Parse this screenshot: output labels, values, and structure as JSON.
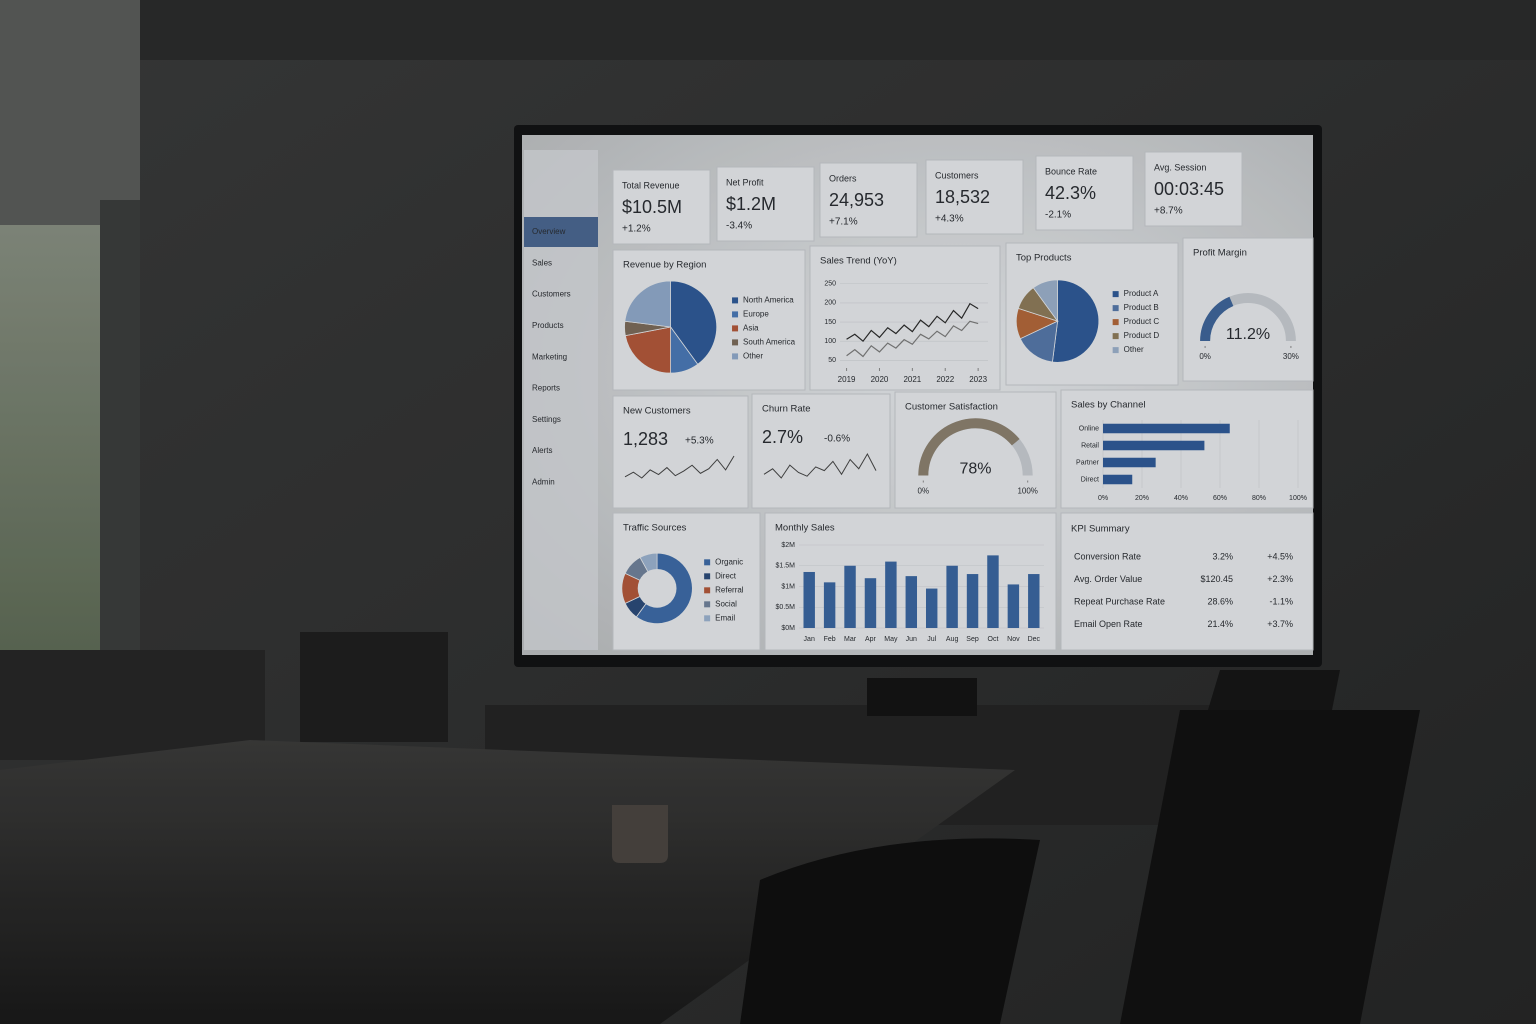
{
  "nav": [
    "Overview",
    "Sales",
    "Customers",
    "Products",
    "Marketing",
    "Reports",
    "Settings",
    "Alerts",
    "Admin"
  ],
  "kpis": [
    {
      "label": "Total Revenue",
      "value": "$10.5M",
      "change": "+1.2%"
    },
    {
      "label": "Net Profit",
      "value": "$1.2M",
      "change": "-3.4%"
    },
    {
      "label": "Orders",
      "value": "24,953",
      "change": "+7.1%"
    },
    {
      "label": "Customers",
      "value": "18,532",
      "change": "+4.3%"
    },
    {
      "label": "Bounce Rate",
      "value": "42.3%",
      "change": "-2.1%"
    },
    {
      "label": "Avg. Session",
      "value": "00:03:45",
      "change": "+8.7%"
    }
  ],
  "chart_data": [
    {
      "type": "pie",
      "title": "Revenue by Region",
      "categories": [
        "North America",
        "Europe",
        "Asia",
        "South America",
        "Other"
      ],
      "values": [
        40,
        10,
        22,
        5,
        23
      ],
      "colors": [
        "#2f5a96",
        "#4a78b5",
        "#b0573a",
        "#7a6a5a",
        "#8fa8c8"
      ]
    },
    {
      "type": "line",
      "title": "Sales Trend (YoY)",
      "x": [
        2019,
        2019.25,
        2019.5,
        2019.75,
        2020,
        2020.25,
        2020.5,
        2020.75,
        2021,
        2021.25,
        2021.5,
        2021.75,
        2022,
        2022.25,
        2022.5,
        2022.75,
        2023
      ],
      "series": [
        {
          "color": "#2b2b2b",
          "values": [
            105,
            118,
            100,
            128,
            110,
            135,
            120,
            142,
            125,
            155,
            138,
            165,
            148,
            180,
            160,
            198,
            185
          ]
        },
        {
          "color": "#7a7a7a",
          "values": [
            62,
            78,
            60,
            88,
            72,
            95,
            82,
            104,
            92,
            118,
            106,
            126,
            112,
            140,
            128,
            152,
            146
          ]
        }
      ],
      "xlim": [
        2018.8,
        2023.3
      ],
      "xticks": [
        2019,
        2020,
        2021,
        2022,
        2023
      ],
      "ylim": [
        30,
        265
      ],
      "yticks": [
        50,
        100,
        150,
        200,
        250
      ],
      "grid": true
    },
    {
      "type": "pie",
      "title": "Top Products",
      "categories": [
        "Product A",
        "Product B",
        "Product C",
        "Product D",
        "Other"
      ],
      "values": [
        52,
        16,
        12,
        10,
        10
      ],
      "colors": [
        "#2f5a96",
        "#5577a8",
        "#b0673a",
        "#8c7a5a",
        "#9aaec8"
      ]
    },
    {
      "type": "gauge",
      "title": "Profit Margin",
      "values": [
        11.2
      ],
      "value_labels": [
        "11.2%"
      ],
      "ylim": [
        0,
        30
      ],
      "yticks": [
        {
          "value": 0,
          "label": "0%"
        },
        {
          "value": 30,
          "label": "30%"
        }
      ],
      "color": "#3e6498"
    },
    {
      "type": "sparkline",
      "title": "New Customers",
      "headline": "1,283",
      "change": "+5.3%",
      "values": [
        20,
        24,
        19,
        26,
        22,
        28,
        21,
        25,
        30,
        23,
        27,
        35,
        26,
        38
      ],
      "color": "#444444"
    },
    {
      "type": "sparkline",
      "title": "Churn Rate",
      "headline": "2.7%",
      "change": "-0.6%",
      "values": [
        22,
        25,
        20,
        27,
        23,
        21,
        26,
        24,
        29,
        22,
        30,
        25,
        33,
        24
      ],
      "color": "#444444"
    },
    {
      "type": "gauge",
      "title": "Customer Satisfaction",
      "values": [
        78
      ],
      "value_labels": [
        "78%"
      ],
      "ylim": [
        0,
        100
      ],
      "yticks": [
        {
          "value": 0,
          "label": "0%"
        },
        {
          "value": 100,
          "label": "100%"
        }
      ],
      "color": "#8a7f6e"
    },
    {
      "type": "hbar",
      "title": "Sales by Channel",
      "categories": [
        "Online",
        "Retail",
        "Partner",
        "Direct"
      ],
      "values": [
        65,
        52,
        27,
        15
      ],
      "color": "#2f5a96",
      "xlim": [
        0,
        100
      ],
      "xticks": [
        {
          "value": 0,
          "label": "0%"
        },
        {
          "value": 20,
          "label": "20%"
        },
        {
          "value": 40,
          "label": "40%"
        },
        {
          "value": 60,
          "label": "60%"
        },
        {
          "value": 80,
          "label": "80%"
        },
        {
          "value": 100,
          "label": "100%"
        }
      ]
    },
    {
      "type": "donut",
      "title": "Traffic Sources",
      "categories": [
        "Organic",
        "Direct",
        "Referral",
        "Social",
        "Email"
      ],
      "values": [
        60,
        8,
        14,
        10,
        8
      ],
      "colors": [
        "#3d6aa5",
        "#2b4a78",
        "#b0573a",
        "#6f8199",
        "#9ab0cc"
      ]
    },
    {
      "type": "bar",
      "title": "Monthly Sales",
      "categories": [
        "Jan",
        "Feb",
        "Mar",
        "Apr",
        "May",
        "Jun",
        "Jul",
        "Aug",
        "Sep",
        "Oct",
        "Nov",
        "Dec"
      ],
      "values": [
        1.35,
        1.1,
        1.5,
        1.2,
        1.6,
        1.25,
        0.95,
        1.5,
        1.3,
        1.75,
        1.05,
        1.3
      ],
      "color": "#3a659f",
      "ylim": [
        0,
        2
      ],
      "yticks": [
        {
          "value": 0,
          "label": "$0M"
        },
        {
          "value": 0.5,
          "label": "$0.5M"
        },
        {
          "value": 1,
          "label": "$1M"
        },
        {
          "value": 1.5,
          "label": "$1.5M"
        },
        {
          "value": 2,
          "label": "$2M"
        }
      ],
      "grid": true
    }
  ],
  "kpi_summary": {
    "title": "KPI Summary",
    "rows": [
      [
        "Conversion Rate",
        "3.2%",
        "+4.5%"
      ],
      [
        "Avg. Order Value",
        "$120.45",
        "+2.3%"
      ],
      [
        "Repeat Purchase Rate",
        "28.6%",
        "-1.1%"
      ],
      [
        "Email Open Rate",
        "21.4%",
        "+3.7%"
      ]
    ]
  }
}
